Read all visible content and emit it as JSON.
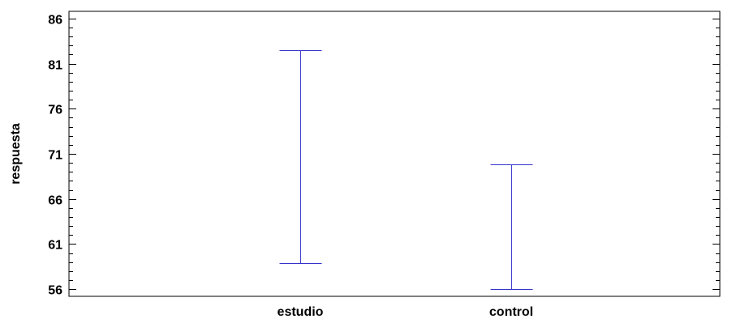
{
  "chart_data": {
    "type": "interval",
    "title": "",
    "xlabel": "",
    "ylabel": "respuesta",
    "categories": [
      "estudio",
      "control"
    ],
    "intervals": [
      {
        "category": "estudio",
        "low": 58.9,
        "high": 82.5
      },
      {
        "category": "control",
        "low": 56.0,
        "high": 69.8
      }
    ],
    "yticks": [
      56,
      61,
      66,
      71,
      76,
      81,
      86
    ],
    "ylim": [
      55.2,
      86.8
    ],
    "minor_ticks_per_major": 4,
    "grid": false,
    "legend": "none",
    "colors": {
      "interval": "#3333cc",
      "axis": "#000000",
      "background": "#ffffff"
    }
  }
}
